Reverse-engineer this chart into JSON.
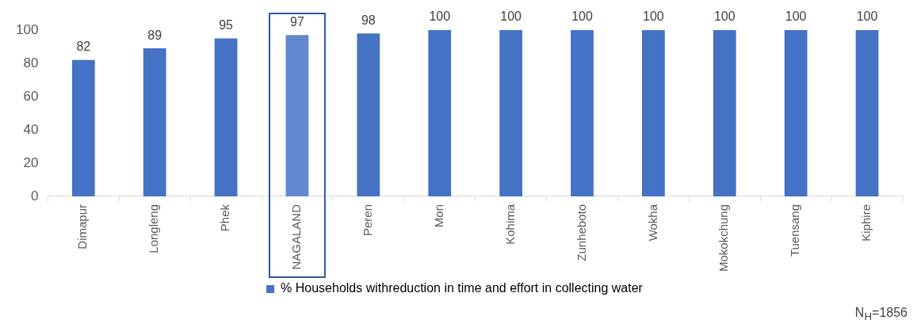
{
  "chart_data": {
    "type": "bar",
    "categories": [
      "Dimapur",
      "Longleng",
      "Phek",
      "NAGALAND",
      "Peren",
      "Mon",
      "Kohima",
      "Zunheboto",
      "Wokha",
      "Mokokchung",
      "Tuensang",
      "Kiphire"
    ],
    "series": [
      {
        "name": "% Households withreduction in time and effort in collecting water",
        "color": "#4472c4",
        "values": [
          82,
          89,
          95,
          97,
          98,
          100,
          100,
          100,
          100,
          100,
          100,
          100
        ],
        "colors": [
          "#4472c4",
          "#4472c4",
          "#4472c4",
          "#6189cf",
          "#4472c4",
          "#4472c4",
          "#4472c4",
          "#4472c4",
          "#4472c4",
          "#4472c4",
          "#4472c4",
          "#4472c4"
        ]
      }
    ],
    "ylim": [
      0,
      100
    ],
    "yticks": [
      0,
      20,
      40,
      60,
      80,
      100
    ],
    "grid": false,
    "legend": "bottom",
    "data_labels": true,
    "annotations": [
      "N$_{H}$=1856"
    ]
  }
}
